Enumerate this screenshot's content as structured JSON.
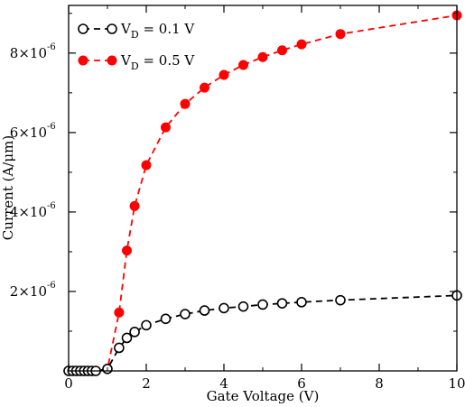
{
  "chart_data": {
    "type": "line",
    "xlabel": "Gate Voltage (V)",
    "ylabel": "Current (A/μm)",
    "xlim": [
      0,
      10
    ],
    "ylim": [
      0,
      9.2e-06
    ],
    "x_ticks": [
      0,
      2,
      4,
      6,
      8,
      10
    ],
    "x_tick_labels": [
      "0",
      "2",
      "4",
      "6",
      "8",
      "10"
    ],
    "y_ticks": [
      2e-06,
      4e-06,
      6e-06,
      8e-06
    ],
    "y_tick_labels": [
      {
        "mantissa": "2×10",
        "exp": "-6"
      },
      {
        "mantissa": "4×10",
        "exp": "-6"
      },
      {
        "mantissa": "6×10",
        "exp": "-6"
      },
      {
        "mantissa": "8×10",
        "exp": "-6"
      }
    ],
    "grid": false,
    "legend_position": "top-left",
    "series": [
      {
        "name": "V_D = 0.1 V",
        "legend_main": "V",
        "legend_sub": "D",
        "legend_rest": " = 0.1 V",
        "color": "#000000",
        "marker": "open-circle",
        "line": "dashed",
        "x": [
          0,
          0.1,
          0.2,
          0.3,
          0.4,
          0.5,
          0.6,
          0.7,
          1.0,
          1.3,
          1.5,
          1.7,
          2.0,
          2.5,
          3.0,
          3.5,
          4.0,
          4.5,
          5.0,
          5.5,
          6.0,
          7.0,
          10.0
        ],
        "y": [
          0,
          0,
          0,
          0,
          0,
          0,
          0,
          0,
          5e-08,
          5.8e-07,
          8.3e-07,
          9.8e-07,
          1.15e-06,
          1.31e-06,
          1.43e-06,
          1.52e-06,
          1.58e-06,
          1.62e-06,
          1.67e-06,
          1.7e-06,
          1.73e-06,
          1.78e-06,
          1.9e-06
        ]
      },
      {
        "name": "V_D = 0.5 V",
        "legend_main": "V",
        "legend_sub": "D",
        "legend_rest": " = 0.5 V",
        "color": "#ff0000",
        "marker": "filled-circle",
        "line": "dashed",
        "x": [
          0,
          0.1,
          0.2,
          0.3,
          0.4,
          0.5,
          0.6,
          0.7,
          1.0,
          1.3,
          1.5,
          1.7,
          2.0,
          2.5,
          3.0,
          3.5,
          4.0,
          4.5,
          5.0,
          5.5,
          6.0,
          7.0,
          10.0
        ],
        "y": [
          0,
          0,
          0,
          0,
          0,
          0,
          0,
          0,
          5e-08,
          1.47e-06,
          3.03e-06,
          4.15e-06,
          5.18e-06,
          6.13e-06,
          6.72e-06,
          7.13e-06,
          7.45e-06,
          7.7e-06,
          7.9e-06,
          8.07e-06,
          8.22e-06,
          8.48e-06,
          8.95e-06
        ]
      }
    ]
  }
}
